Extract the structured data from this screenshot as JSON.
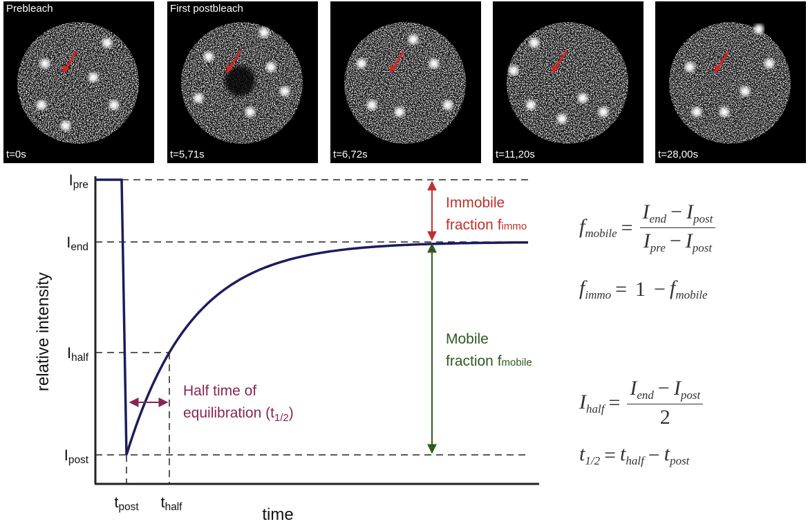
{
  "panels": [
    {
      "caption": "Prebleach",
      "time": "t=0s"
    },
    {
      "caption": "First postbleach",
      "time": "t=5,71s"
    },
    {
      "time": "t=6,72s"
    },
    {
      "time": "t=11,20s"
    },
    {
      "time": "t=28,00s"
    }
  ],
  "plot": {
    "y_label": "relative intensity",
    "x_label": "time",
    "y_levels": [
      {
        "base": "I",
        "sub": "pre"
      },
      {
        "base": "I",
        "sub": "end"
      },
      {
        "base": "I",
        "sub": "half"
      },
      {
        "base": "I",
        "sub": "post"
      }
    ],
    "x_marks": [
      {
        "base": "t",
        "sub": "post"
      },
      {
        "base": "t",
        "sub": "half"
      }
    ],
    "immobile": {
      "line1": "Immobile",
      "line2": "fraction f",
      "sub": "immo"
    },
    "mobile": {
      "line1": "Mobile",
      "line2": "fraction f",
      "sub": "mobile"
    },
    "half_time": {
      "line1": "Half time of",
      "line2": "equilibration (t",
      "sub": "1/2",
      "close": ")"
    }
  },
  "formulas": [
    {
      "lhs": {
        "base": "f",
        "sub": "mobile"
      },
      "eq": "=",
      "num": [
        {
          "base": "I",
          "sub": "end"
        },
        "−",
        {
          "base": "I",
          "sub": "post"
        }
      ],
      "den": [
        {
          "base": "I",
          "sub": "pre"
        },
        "−",
        {
          "base": "I",
          "sub": "post"
        }
      ]
    },
    {
      "lhs": {
        "base": "f",
        "sub": "immo"
      },
      "eq": "=",
      "rhs": [
        "1",
        "−",
        {
          "base": "f",
          "sub": "mobile"
        }
      ]
    },
    {
      "lhs": {
        "base": "I",
        "sub": "half"
      },
      "eq": "=",
      "num": [
        {
          "base": "I",
          "sub": "end"
        },
        "−",
        {
          "base": "I",
          "sub": "post"
        }
      ],
      "den": [
        "2"
      ]
    },
    {
      "lhs": {
        "base": "t",
        "sub": "1/2"
      },
      "eq": "=",
      "rhs": [
        {
          "base": "t",
          "sub": "half"
        },
        "−",
        {
          "base": "t",
          "sub": "post"
        }
      ]
    }
  ]
}
